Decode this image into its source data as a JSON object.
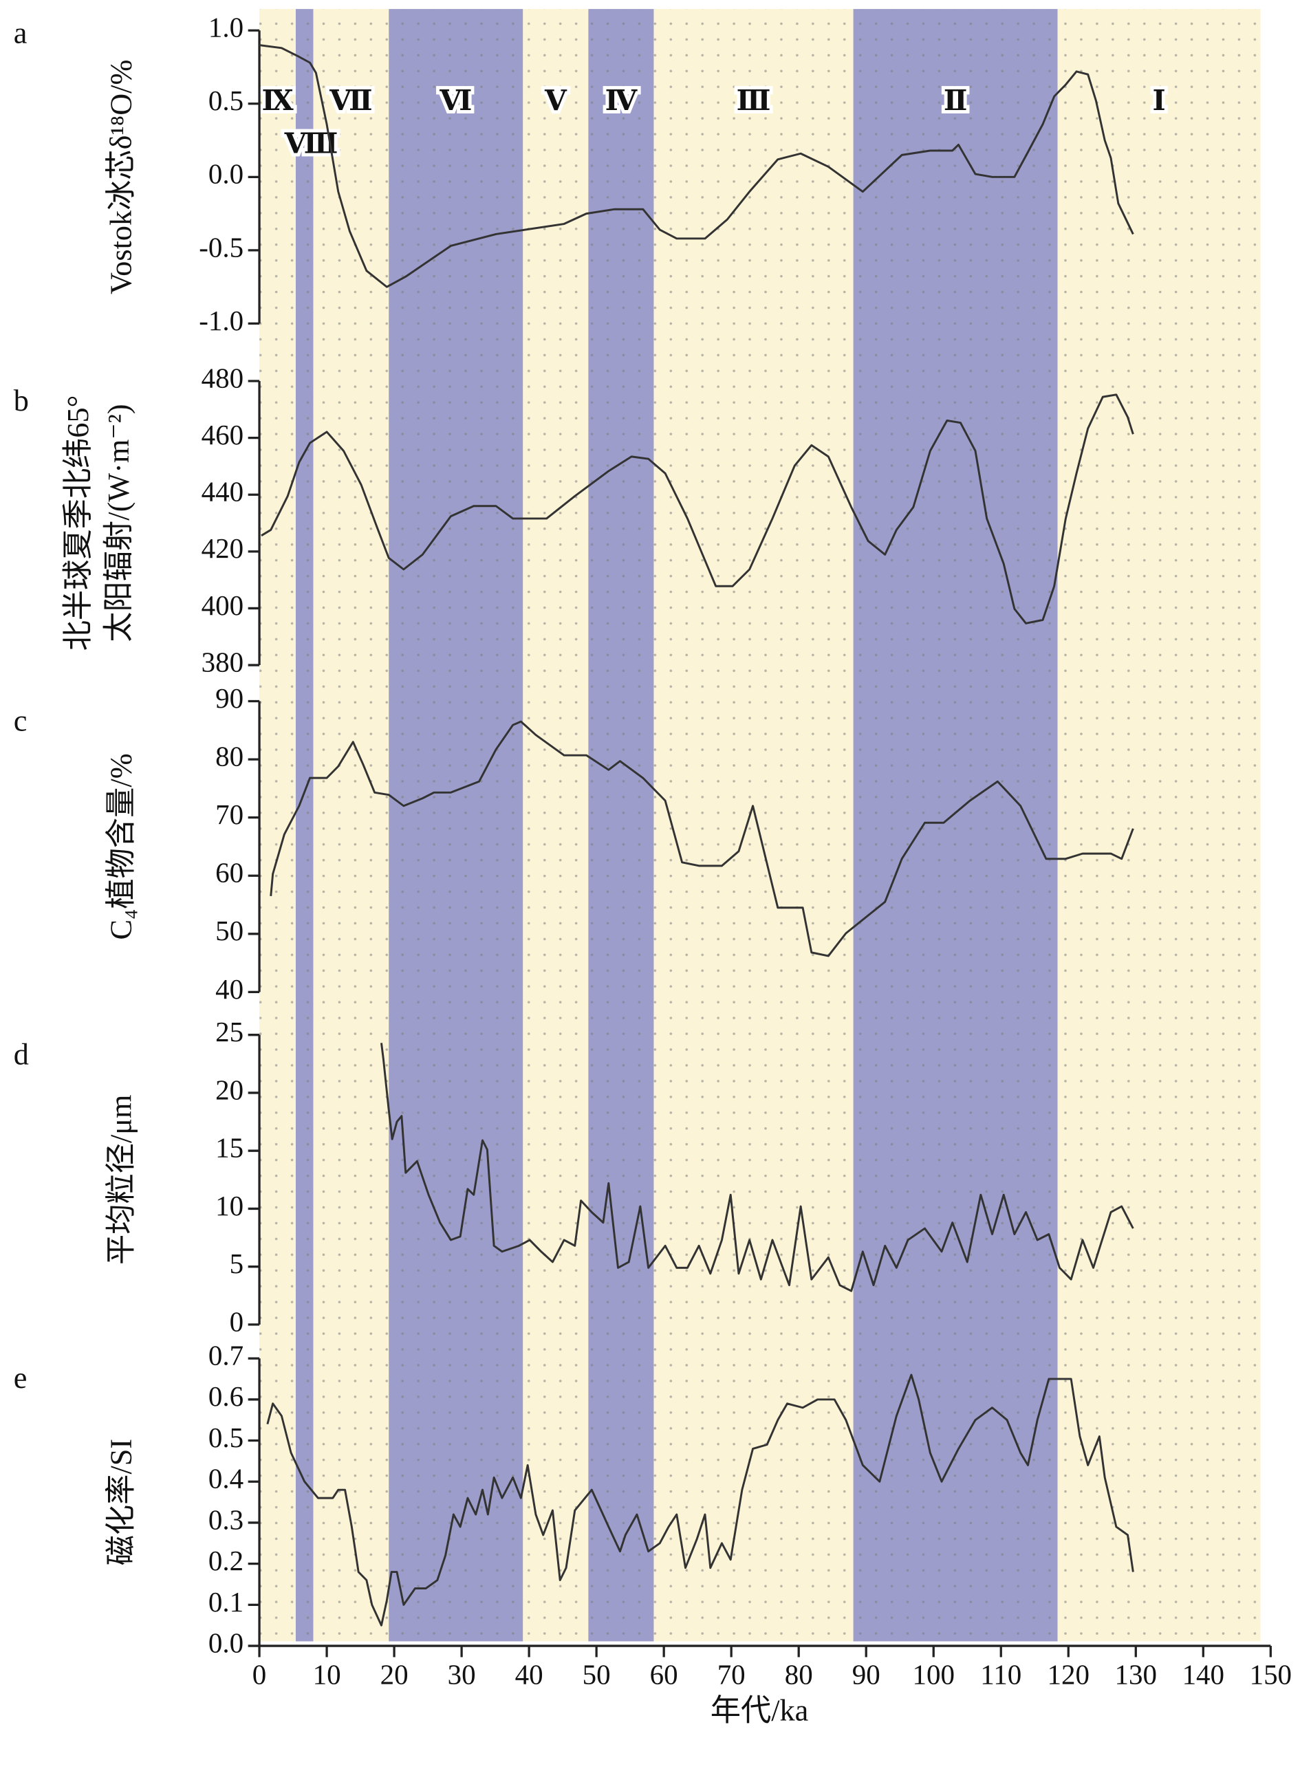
{
  "stages": [
    {
      "label": "Ⅸ",
      "start": 0,
      "end": 5.4,
      "color": "#fcf4d6"
    },
    {
      "label": "Ⅷ",
      "start": 5.4,
      "end": 8,
      "color": "#9c9dca"
    },
    {
      "label": "Ⅶ",
      "start": 8,
      "end": 19.2,
      "color": "#fcf4d6"
    },
    {
      "label": "Ⅵ",
      "start": 19.2,
      "end": 39.1,
      "color": "#9c9dca"
    },
    {
      "label": "Ⅴ",
      "start": 39.1,
      "end": 48.8,
      "color": "#fcf4d6"
    },
    {
      "label": "Ⅳ",
      "start": 48.8,
      "end": 58.5,
      "color": "#9c9dca"
    },
    {
      "label": "Ⅲ",
      "start": 58.5,
      "end": 88.1,
      "color": "#fcf4d6"
    },
    {
      "label": "Ⅱ",
      "start": 88.1,
      "end": 118.4,
      "color": "#9c9dca"
    },
    {
      "label": "Ⅰ",
      "start": 118.4,
      "end": 148.5,
      "color": "#fcf4d6"
    }
  ],
  "chart_data": [
    {
      "type": "line",
      "panel": "a",
      "ylabel": "Vostok冰芯δ¹⁸O/%",
      "color": "#333333",
      "x": [
        0,
        3.3,
        5.9,
        7.5,
        8.4,
        10,
        11.7,
        13.4,
        15.9,
        18.9,
        21.7,
        28.4,
        35.1,
        45.2,
        48.5,
        52.7,
        56.9,
        59.4,
        61.9,
        66.1,
        69.4,
        72.7,
        76.9,
        80.3,
        84.4,
        89.5,
        95.3,
        99.5,
        102.8,
        103.7,
        106.2,
        108.7,
        112,
        114,
        116.2,
        117.9,
        119.6,
        121.2,
        122.9,
        124.1,
        125.4,
        126.3,
        127.4,
        129.6
      ],
      "values": [
        0.9,
        0.88,
        0.82,
        0.78,
        0.71,
        0.36,
        -0.1,
        -0.37,
        -0.64,
        -0.75,
        -0.68,
        -0.47,
        -0.39,
        -0.32,
        -0.25,
        -0.22,
        -0.22,
        -0.36,
        -0.42,
        -0.42,
        -0.29,
        -0.1,
        0.12,
        0.16,
        0.07,
        -0.1,
        0.15,
        0.18,
        0.18,
        0.22,
        0.02,
        0,
        0,
        0.17,
        0.36,
        0.55,
        0.63,
        0.72,
        0.7,
        0.52,
        0.25,
        0.13,
        -0.18,
        -0.39
      ],
      "ylim": [
        -1,
        1
      ],
      "yticks": [
        {
          "value": 1,
          "label": "1.0"
        },
        0.5,
        {
          "value": 0,
          "label": "0.0"
        },
        -0.5,
        {
          "value": -1,
          "label": "-1.0"
        }
      ]
    },
    {
      "type": "line",
      "panel": "b",
      "ylabel": [
        "北半球夏季北纬65°",
        "太阳辐射/(W·m⁻²)"
      ],
      "color": "#333333",
      "x": [
        0.3,
        1.7,
        4.2,
        5.9,
        7.5,
        10,
        12.5,
        15.1,
        17.6,
        19.2,
        21.4,
        24.2,
        28.4,
        31.8,
        35.1,
        37.6,
        42.6,
        46.8,
        51.8,
        55.2,
        57.7,
        60.2,
        63.5,
        67.7,
        70.2,
        72.7,
        76.1,
        79.4,
        81.9,
        84.4,
        87.8,
        90.3,
        92.8,
        94.5,
        97,
        99.5,
        102,
        104,
        106.2,
        107.9,
        110.4,
        112,
        113.7,
        116.2,
        117.9,
        119.6,
        121.2,
        122.9,
        125.1,
        127.1,
        128.8,
        129.6
      ],
      "values": [
        425.6,
        427.6,
        439.5,
        451.4,
        458.2,
        462.1,
        455.4,
        443.5,
        427.6,
        417.7,
        413.7,
        418.9,
        432.4,
        436,
        436,
        431.6,
        431.6,
        439.5,
        448.3,
        453.4,
        452.6,
        447.5,
        431.6,
        407.8,
        407.8,
        413.7,
        431.6,
        450.2,
        457.4,
        453.4,
        435.6,
        423.7,
        418.9,
        427.6,
        435.6,
        455.4,
        466.1,
        465.3,
        455.4,
        431.6,
        415.7,
        399.8,
        394.7,
        395.9,
        407.8,
        431.6,
        447.5,
        463.3,
        474.4,
        475.2,
        467.3,
        461.3
      ],
      "ylim": [
        380,
        480
      ],
      "yticks": [
        480,
        460,
        440,
        420,
        400,
        380
      ]
    },
    {
      "type": "line",
      "panel": "c",
      "ylabel": "C₄植物含量/%",
      "color": "#333333",
      "x": [
        1.7,
        2,
        3.7,
        5.9,
        7.5,
        10,
        11.7,
        13.9,
        15.4,
        17.1,
        19.2,
        21.4,
        24.2,
        25.9,
        28.4,
        32.6,
        35.1,
        37.6,
        38.8,
        41,
        45.2,
        48.5,
        51.8,
        53.5,
        56.9,
        60.2,
        62.7,
        65.2,
        68.6,
        71.1,
        73.2,
        76.9,
        80.6,
        81.9,
        84.4,
        87,
        92.8,
        95.3,
        98.7,
        101.5,
        105.4,
        109.5,
        112.9,
        116.7,
        119.6,
        122.1,
        126.3,
        127.9,
        129.6
      ],
      "values": [
        56.5,
        60.3,
        67.1,
        72,
        76.8,
        76.8,
        78.8,
        83,
        79.1,
        74.3,
        73.9,
        72,
        73.3,
        74.3,
        74.3,
        76.2,
        81.7,
        85.9,
        86.5,
        84.2,
        80.7,
        80.7,
        78.2,
        79.7,
        76.8,
        72.9,
        62.3,
        61.7,
        61.7,
        64.2,
        72,
        54.5,
        54.5,
        46.8,
        46.2,
        50.1,
        55.5,
        62.9,
        69.1,
        69.1,
        72.9,
        76.2,
        72,
        62.9,
        62.9,
        63.8,
        63.8,
        62.9,
        68.1
      ],
      "ylim": [
        40,
        90
      ],
      "yticks": [
        90,
        80,
        70,
        60,
        50,
        40
      ]
    },
    {
      "type": "line",
      "panel": "d",
      "ylabel": "平均粒径/μm",
      "color": "#333333",
      "x": [
        18.1,
        18.4,
        19.2,
        19.7,
        20.4,
        21.1,
        21.7,
        23.4,
        25.1,
        26.8,
        28.4,
        29.8,
        30.9,
        31.8,
        33.1,
        33.8,
        34.8,
        36,
        38.5,
        40.1,
        41.8,
        43.5,
        45.2,
        46.8,
        47.7,
        49.3,
        51,
        51.8,
        53.2,
        54.8,
        56.5,
        57.7,
        60.2,
        61.9,
        63.5,
        65.2,
        66.9,
        68.6,
        69.9,
        71.1,
        72.7,
        74.4,
        76.1,
        78.6,
        80.3,
        81.9,
        84.4,
        86.1,
        87.8,
        89.5,
        91.1,
        92.8,
        94.5,
        96.2,
        98.7,
        101.2,
        102.8,
        105,
        107,
        108.7,
        110.4,
        112,
        113.7,
        115.4,
        117.1,
        118.7,
        120.4,
        122.1,
        123.7,
        126.3,
        127.9,
        129.6
      ],
      "values": [
        24.3,
        22.9,
        18.5,
        16,
        17.5,
        18,
        13.1,
        14.1,
        11.2,
        8.8,
        7.3,
        7.6,
        11.7,
        11.2,
        15.9,
        15.1,
        6.8,
        6.3,
        6.8,
        7.3,
        6.3,
        5.4,
        7.3,
        6.8,
        10.7,
        9.7,
        8.8,
        12.2,
        4.9,
        5.4,
        10.2,
        4.9,
        6.8,
        4.9,
        4.9,
        6.8,
        4.4,
        7.3,
        11.2,
        4.4,
        7.3,
        3.9,
        7.3,
        3.4,
        10.2,
        3.9,
        5.8,
        3.4,
        2.9,
        6.3,
        3.4,
        6.8,
        4.9,
        7.3,
        8.3,
        6.3,
        8.8,
        5.4,
        11.2,
        7.8,
        11.2,
        7.8,
        9.7,
        7.3,
        7.8,
        4.9,
        3.9,
        7.3,
        4.9,
        9.7,
        10.2,
        8.3
      ],
      "ylim": [
        0,
        25
      ],
      "yticks": [
        25,
        20,
        15,
        10,
        5,
        0
      ]
    },
    {
      "type": "line",
      "panel": "e",
      "ylabel": "磁化率/SI",
      "color": "#333333",
      "xlabel": "年代/ka",
      "x": [
        1.2,
        2,
        3.3,
        4.7,
        6.7,
        8.7,
        10.9,
        11.7,
        12.7,
        13.7,
        14.7,
        15.9,
        16.7,
        18.1,
        18.9,
        19.6,
        20.4,
        21.4,
        23.1,
        24.7,
        26.4,
        27.6,
        28.8,
        29.8,
        30.9,
        32.1,
        33.1,
        33.9,
        34.8,
        36,
        37.6,
        38.8,
        39.8,
        41,
        42.1,
        43.5,
        44.6,
        45.5,
        46.8,
        49.3,
        51.8,
        53.5,
        54.3,
        56,
        57.7,
        59.4,
        60.7,
        61.9,
        63.2,
        64.9,
        66.1,
        66.9,
        68.6,
        69.9,
        71.6,
        73.2,
        75.3,
        76.9,
        78.3,
        80.6,
        82.8,
        85.3,
        87,
        89.5,
        92,
        94.5,
        96.7,
        97.8,
        99.5,
        101.2,
        103.7,
        106.2,
        108.7,
        110.9,
        112.9,
        114,
        115.4,
        117.1,
        118.7,
        120.4,
        121.7,
        122.9,
        124.6,
        125.4,
        127.1,
        128.8,
        129.6
      ],
      "values": [
        0.54,
        0.59,
        0.56,
        0.47,
        0.4,
        0.36,
        0.36,
        0.38,
        0.38,
        0.29,
        0.18,
        0.16,
        0.1,
        0.05,
        0.11,
        0.18,
        0.18,
        0.1,
        0.14,
        0.14,
        0.16,
        0.22,
        0.32,
        0.29,
        0.36,
        0.32,
        0.38,
        0.32,
        0.41,
        0.36,
        0.41,
        0.36,
        0.44,
        0.32,
        0.27,
        0.33,
        0.16,
        0.19,
        0.33,
        0.38,
        0.29,
        0.23,
        0.27,
        0.32,
        0.23,
        0.25,
        0.29,
        0.32,
        0.19,
        0.26,
        0.32,
        0.19,
        0.25,
        0.21,
        0.38,
        0.48,
        0.49,
        0.55,
        0.59,
        0.58,
        0.6,
        0.6,
        0.55,
        0.44,
        0.4,
        0.56,
        0.66,
        0.6,
        0.47,
        0.4,
        0.48,
        0.55,
        0.58,
        0.55,
        0.47,
        0.44,
        0.55,
        0.65,
        0.65,
        0.65,
        0.51,
        0.44,
        0.51,
        0.41,
        0.29,
        0.27,
        0.18
      ],
      "ylim": [
        0,
        0.7
      ],
      "yticks": [
        0.7,
        0.6,
        0.5,
        0.4,
        0.3,
        0.2,
        0.1,
        {
          "value": 0,
          "label": "0.0"
        }
      ],
      "xlim": [
        0,
        150
      ],
      "xticks": [
        0,
        10,
        20,
        30,
        40,
        50,
        60,
        70,
        80,
        90,
        100,
        110,
        120,
        130,
        140,
        150
      ]
    }
  ]
}
